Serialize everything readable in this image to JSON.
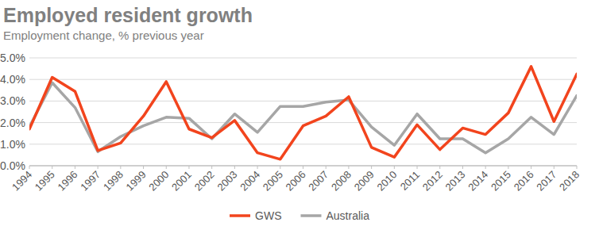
{
  "chart_data": {
    "type": "line",
    "title": "Employed resident growth",
    "subtitle": "Employment change, % previous year",
    "x": [
      1994,
      1995,
      1996,
      1997,
      1998,
      1999,
      2000,
      2001,
      2002,
      2003,
      2004,
      2005,
      2006,
      2007,
      2008,
      2009,
      2010,
      2011,
      2012,
      2013,
      2014,
      2015,
      2016,
      2017,
      2018
    ],
    "xlim": [
      1994,
      2018
    ],
    "xticks": [
      1994,
      1995,
      1996,
      1997,
      1998,
      1999,
      2000,
      2001,
      2002,
      2003,
      2004,
      2005,
      2006,
      2007,
      2008,
      2009,
      2010,
      2011,
      2012,
      2013,
      2014,
      2015,
      2016,
      2017,
      2018
    ],
    "ylim": [
      0,
      5
    ],
    "yticks": [
      {
        "value": 0,
        "label": "0.0%"
      },
      {
        "value": 1,
        "label": "1.0%"
      },
      {
        "value": 2,
        "label": "2.0%"
      },
      {
        "value": 3,
        "label": "3.0%"
      },
      {
        "value": 4,
        "label": "4.0%"
      },
      {
        "value": 5,
        "label": "5.0%"
      }
    ],
    "grid": true,
    "legend": "bottom",
    "series": [
      {
        "name": "GWS",
        "color": "#f2441d",
        "values": [
          1.7,
          4.1,
          3.45,
          0.7,
          1.05,
          2.3,
          3.9,
          1.7,
          1.3,
          2.1,
          0.6,
          0.3,
          1.85,
          2.3,
          3.2,
          0.85,
          0.4,
          1.9,
          0.75,
          1.75,
          1.45,
          2.45,
          4.6,
          2.05,
          4.25
        ]
      },
      {
        "name": "Australia",
        "color": "#a6a6a6",
        "values": [
          1.8,
          3.85,
          2.7,
          0.65,
          1.35,
          1.85,
          2.25,
          2.2,
          1.25,
          2.4,
          1.55,
          2.75,
          2.75,
          2.95,
          3.05,
          1.8,
          0.95,
          2.4,
          1.25,
          1.25,
          0.6,
          1.25,
          2.25,
          1.45,
          3.25
        ]
      }
    ]
  }
}
